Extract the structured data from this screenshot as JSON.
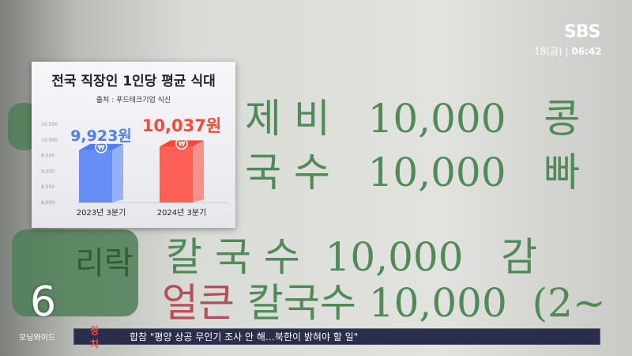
{
  "background_menu": [
    {
      "name": "제 비",
      "price": "10,000",
      "tail": "콩"
    },
    {
      "name": "국 수",
      "price": "10,000",
      "tail": "빠"
    },
    {
      "name": "칼 국 수",
      "price": "10,000",
      "tail": "감"
    },
    {
      "hot": "얼큰",
      "name": "칼국수",
      "price": "10,000",
      "tail": "(2~"
    }
  ],
  "menu_side_label": "리락",
  "broadcaster": {
    "logo": "SBS",
    "date": "18(금)",
    "time": "06:42"
  },
  "program": {
    "number": "6",
    "name": "모닝와이드"
  },
  "ticker": {
    "category": "정 치",
    "headline": "합참 \"평양 상공 무인기 조사 안 해…북한이 밝혀야 할 일\""
  },
  "chart_data": {
    "type": "bar",
    "title": "전국 직장인 1인당 평균 식대",
    "subtitle": "출처 : 푸드테크기업 식신",
    "categories": [
      "2023년 3분기",
      "2024년 3분기"
    ],
    "values": [
      9923,
      10037
    ],
    "data_labels": [
      "9,923원",
      "10,037원"
    ],
    "ylim": [
      8000,
      10500
    ],
    "yticks": [
      "8,000",
      "8,500",
      "9,000",
      "9,500",
      "10,000",
      "10,500"
    ],
    "colors": [
      "#4f7df5",
      "#ff4638"
    ],
    "bar_icon": "won-coin-icon",
    "grid": false
  }
}
